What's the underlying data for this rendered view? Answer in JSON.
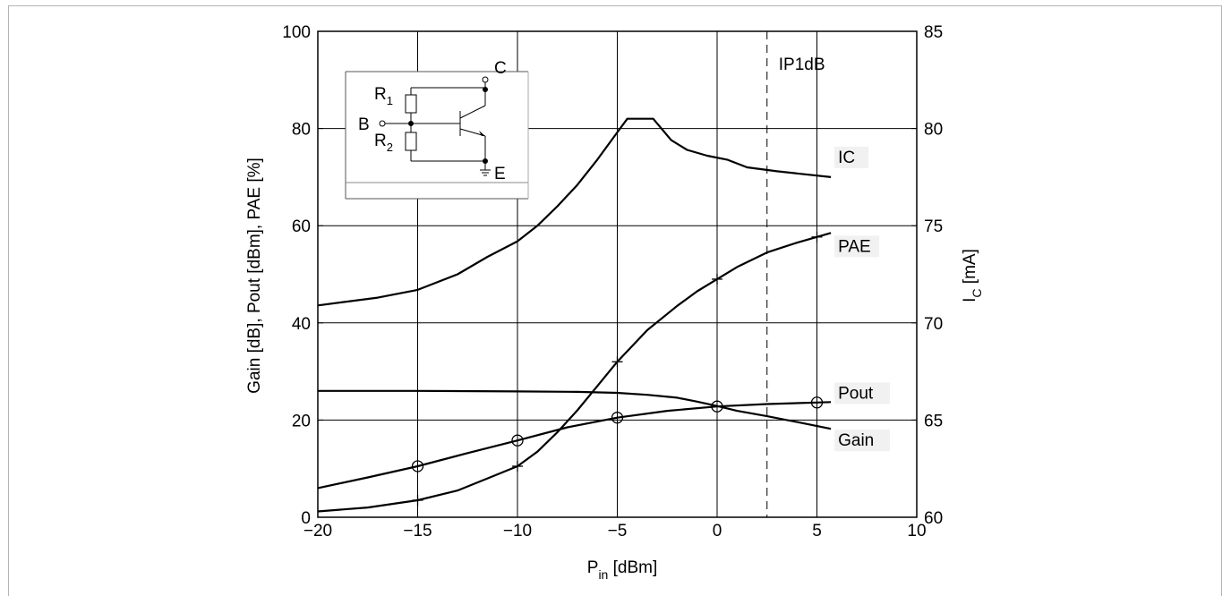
{
  "chart_data": {
    "type": "line",
    "xlabel": "P",
    "xlabel_sub": "in",
    "xlabel_unit": " [dBm]",
    "ylabel_left": "Gain [dB], Pout [dBm], PAE [%]",
    "ylabel_right": "I",
    "ylabel_right_sub": "C",
    "ylabel_right_unit": " [mA]",
    "xlim": [
      -20,
      10
    ],
    "ylim_left": [
      0,
      100
    ],
    "ylim_right": [
      60,
      85
    ],
    "x_ticks": [
      -20,
      -15,
      -10,
      -5,
      0,
      5,
      10
    ],
    "x_tick_labels": [
      "−20",
      "−15",
      "−10",
      "−5",
      "0",
      "5",
      "10"
    ],
    "y_left_ticks": [
      0,
      20,
      40,
      60,
      80,
      100
    ],
    "y_left_tick_labels": [
      "0",
      "20",
      "40",
      "60",
      "80",
      "100"
    ],
    "y_right_ticks": [
      60,
      65,
      70,
      75,
      80,
      85
    ],
    "y_right_tick_labels": [
      "60",
      "65",
      "70",
      "75",
      "80",
      "85"
    ],
    "grid": true,
    "series": [
      {
        "name": "IC",
        "axis": "right",
        "marker": "none",
        "x": [
          -20,
          -17,
          -15,
          -13,
          -11.5,
          -10,
          -9,
          -8,
          -7,
          -6,
          -5,
          -4.5,
          -4,
          -3.2,
          -2.3,
          -1.5,
          -0.5,
          0.5,
          1.5,
          3,
          5.7
        ],
        "y": [
          70.9,
          71.3,
          71.7,
          72.5,
          73.4,
          74.2,
          75,
          76,
          77.1,
          78.4,
          79.8,
          80.5,
          80.5,
          80.5,
          79.4,
          78.9,
          78.6,
          78.4,
          78.0,
          77.8,
          77.5
        ]
      },
      {
        "name": "PAE",
        "axis": "left",
        "marker": "plus",
        "marker_x": [
          -15,
          -10,
          -5,
          0,
          5
        ],
        "x": [
          -20,
          -17.5,
          -15,
          -13,
          -11.5,
          -10,
          -9,
          -8,
          -7,
          -6,
          -5,
          -3.5,
          -2,
          -1,
          0,
          1,
          2.5,
          4,
          5.7
        ],
        "y": [
          1.2,
          2,
          3.5,
          5.5,
          8,
          10.5,
          13.5,
          17.5,
          22,
          27,
          32,
          38.5,
          43.5,
          46.5,
          49,
          51.5,
          54.5,
          56.5,
          58.5
        ]
      },
      {
        "name": "Pout",
        "axis": "left",
        "marker": "circle",
        "marker_x": [
          -15,
          -10,
          -5,
          0,
          5
        ],
        "x": [
          -20,
          -17.5,
          -15,
          -12.5,
          -10,
          -7.5,
          -5,
          -2.5,
          0,
          2.5,
          5.7
        ],
        "y": [
          6,
          8.2,
          10.5,
          13.2,
          15.8,
          18.5,
          20.5,
          21.9,
          22.8,
          23.3,
          23.7
        ]
      },
      {
        "name": "Gain",
        "axis": "left",
        "marker": "none",
        "x": [
          -20,
          -15,
          -10,
          -7,
          -5,
          -3.5,
          -2,
          -1,
          0,
          1,
          2.5,
          4,
          5.7
        ],
        "y": [
          26,
          26,
          25.9,
          25.8,
          25.6,
          25.2,
          24.6,
          23.8,
          22.9,
          21.9,
          20.8,
          19.6,
          18.2
        ]
      }
    ],
    "vline": {
      "x": 2.5,
      "style": "dashed",
      "label": "IP1dB"
    },
    "inset": {
      "labels": [
        "R",
        "1",
        "R",
        "2",
        "B",
        "C",
        "E"
      ]
    }
  }
}
